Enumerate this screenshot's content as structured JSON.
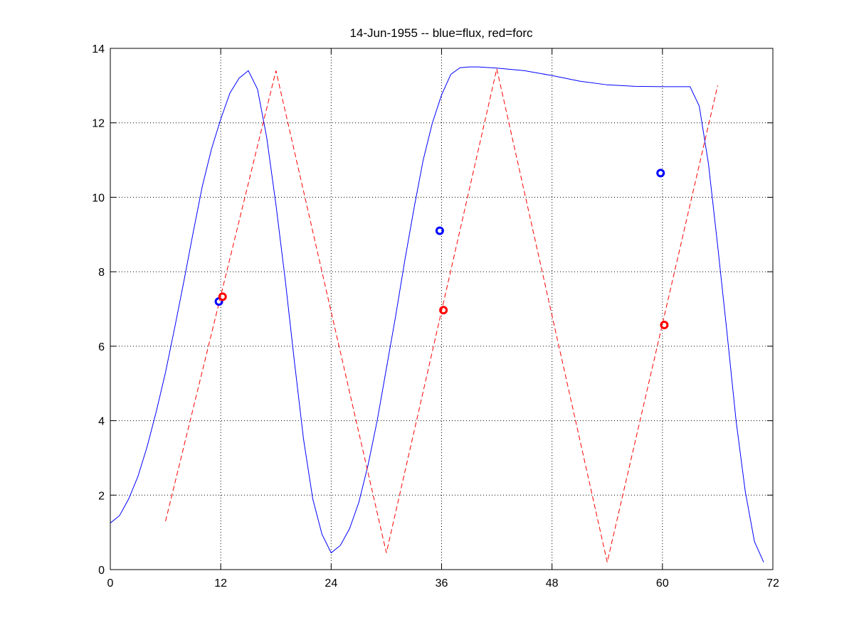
{
  "chart_data": {
    "type": "line",
    "title": "14-Jun-1955 -- blue=flux, red=forc",
    "xlabel": "",
    "ylabel": "",
    "xlim": [
      0,
      72
    ],
    "ylim": [
      0,
      14
    ],
    "xticks": [
      0,
      12,
      24,
      36,
      48,
      60,
      72
    ],
    "yticks": [
      0,
      2,
      4,
      6,
      8,
      10,
      12,
      14
    ],
    "grid": true,
    "series": [
      {
        "color": "#0000ff",
        "style": "solid",
        "x": [
          0,
          1,
          2,
          3,
          4,
          5,
          6,
          7,
          8,
          9,
          10,
          11,
          12,
          13,
          14,
          15,
          16,
          17,
          18,
          19,
          20,
          21,
          22,
          23,
          24,
          25,
          26,
          27,
          28,
          29,
          30,
          31,
          32,
          33,
          34,
          35,
          36,
          37,
          38,
          39,
          40,
          42,
          45,
          48,
          51,
          54,
          57,
          60,
          62,
          63,
          64,
          65,
          66,
          67,
          68,
          69,
          70,
          71
        ],
        "y": [
          1.25,
          1.45,
          1.9,
          2.5,
          3.3,
          4.25,
          5.3,
          6.5,
          7.75,
          9.05,
          10.3,
          11.3,
          12.1,
          12.8,
          13.2,
          13.4,
          12.9,
          11.6,
          9.8,
          7.8,
          5.6,
          3.5,
          1.9,
          0.95,
          0.45,
          0.65,
          1.1,
          1.8,
          2.8,
          4.0,
          5.4,
          6.8,
          8.3,
          9.7,
          11.0,
          12.0,
          12.75,
          13.3,
          13.48,
          13.5,
          13.5,
          13.47,
          13.4,
          13.27,
          13.12,
          13.02,
          12.98,
          12.97,
          12.97,
          12.97,
          12.45,
          10.9,
          8.7,
          6.4,
          4.0,
          2.1,
          0.75,
          0.2
        ]
      },
      {
        "color": "#ff0000",
        "style": "dashed",
        "x": [
          6,
          18,
          30,
          42,
          54,
          66
        ],
        "y": [
          1.3,
          13.4,
          0.45,
          13.45,
          0.2,
          13.0
        ]
      }
    ],
    "markers": [
      {
        "color": "#0000ff",
        "x": 11.8,
        "y": 7.2
      },
      {
        "color": "#ff0000",
        "x": 12.2,
        "y": 7.33
      },
      {
        "color": "#0000ff",
        "x": 35.8,
        "y": 9.1
      },
      {
        "color": "#ff0000",
        "x": 36.2,
        "y": 6.97
      },
      {
        "color": "#0000ff",
        "x": 59.8,
        "y": 10.65
      },
      {
        "color": "#ff0000",
        "x": 60.2,
        "y": 6.57
      }
    ]
  }
}
